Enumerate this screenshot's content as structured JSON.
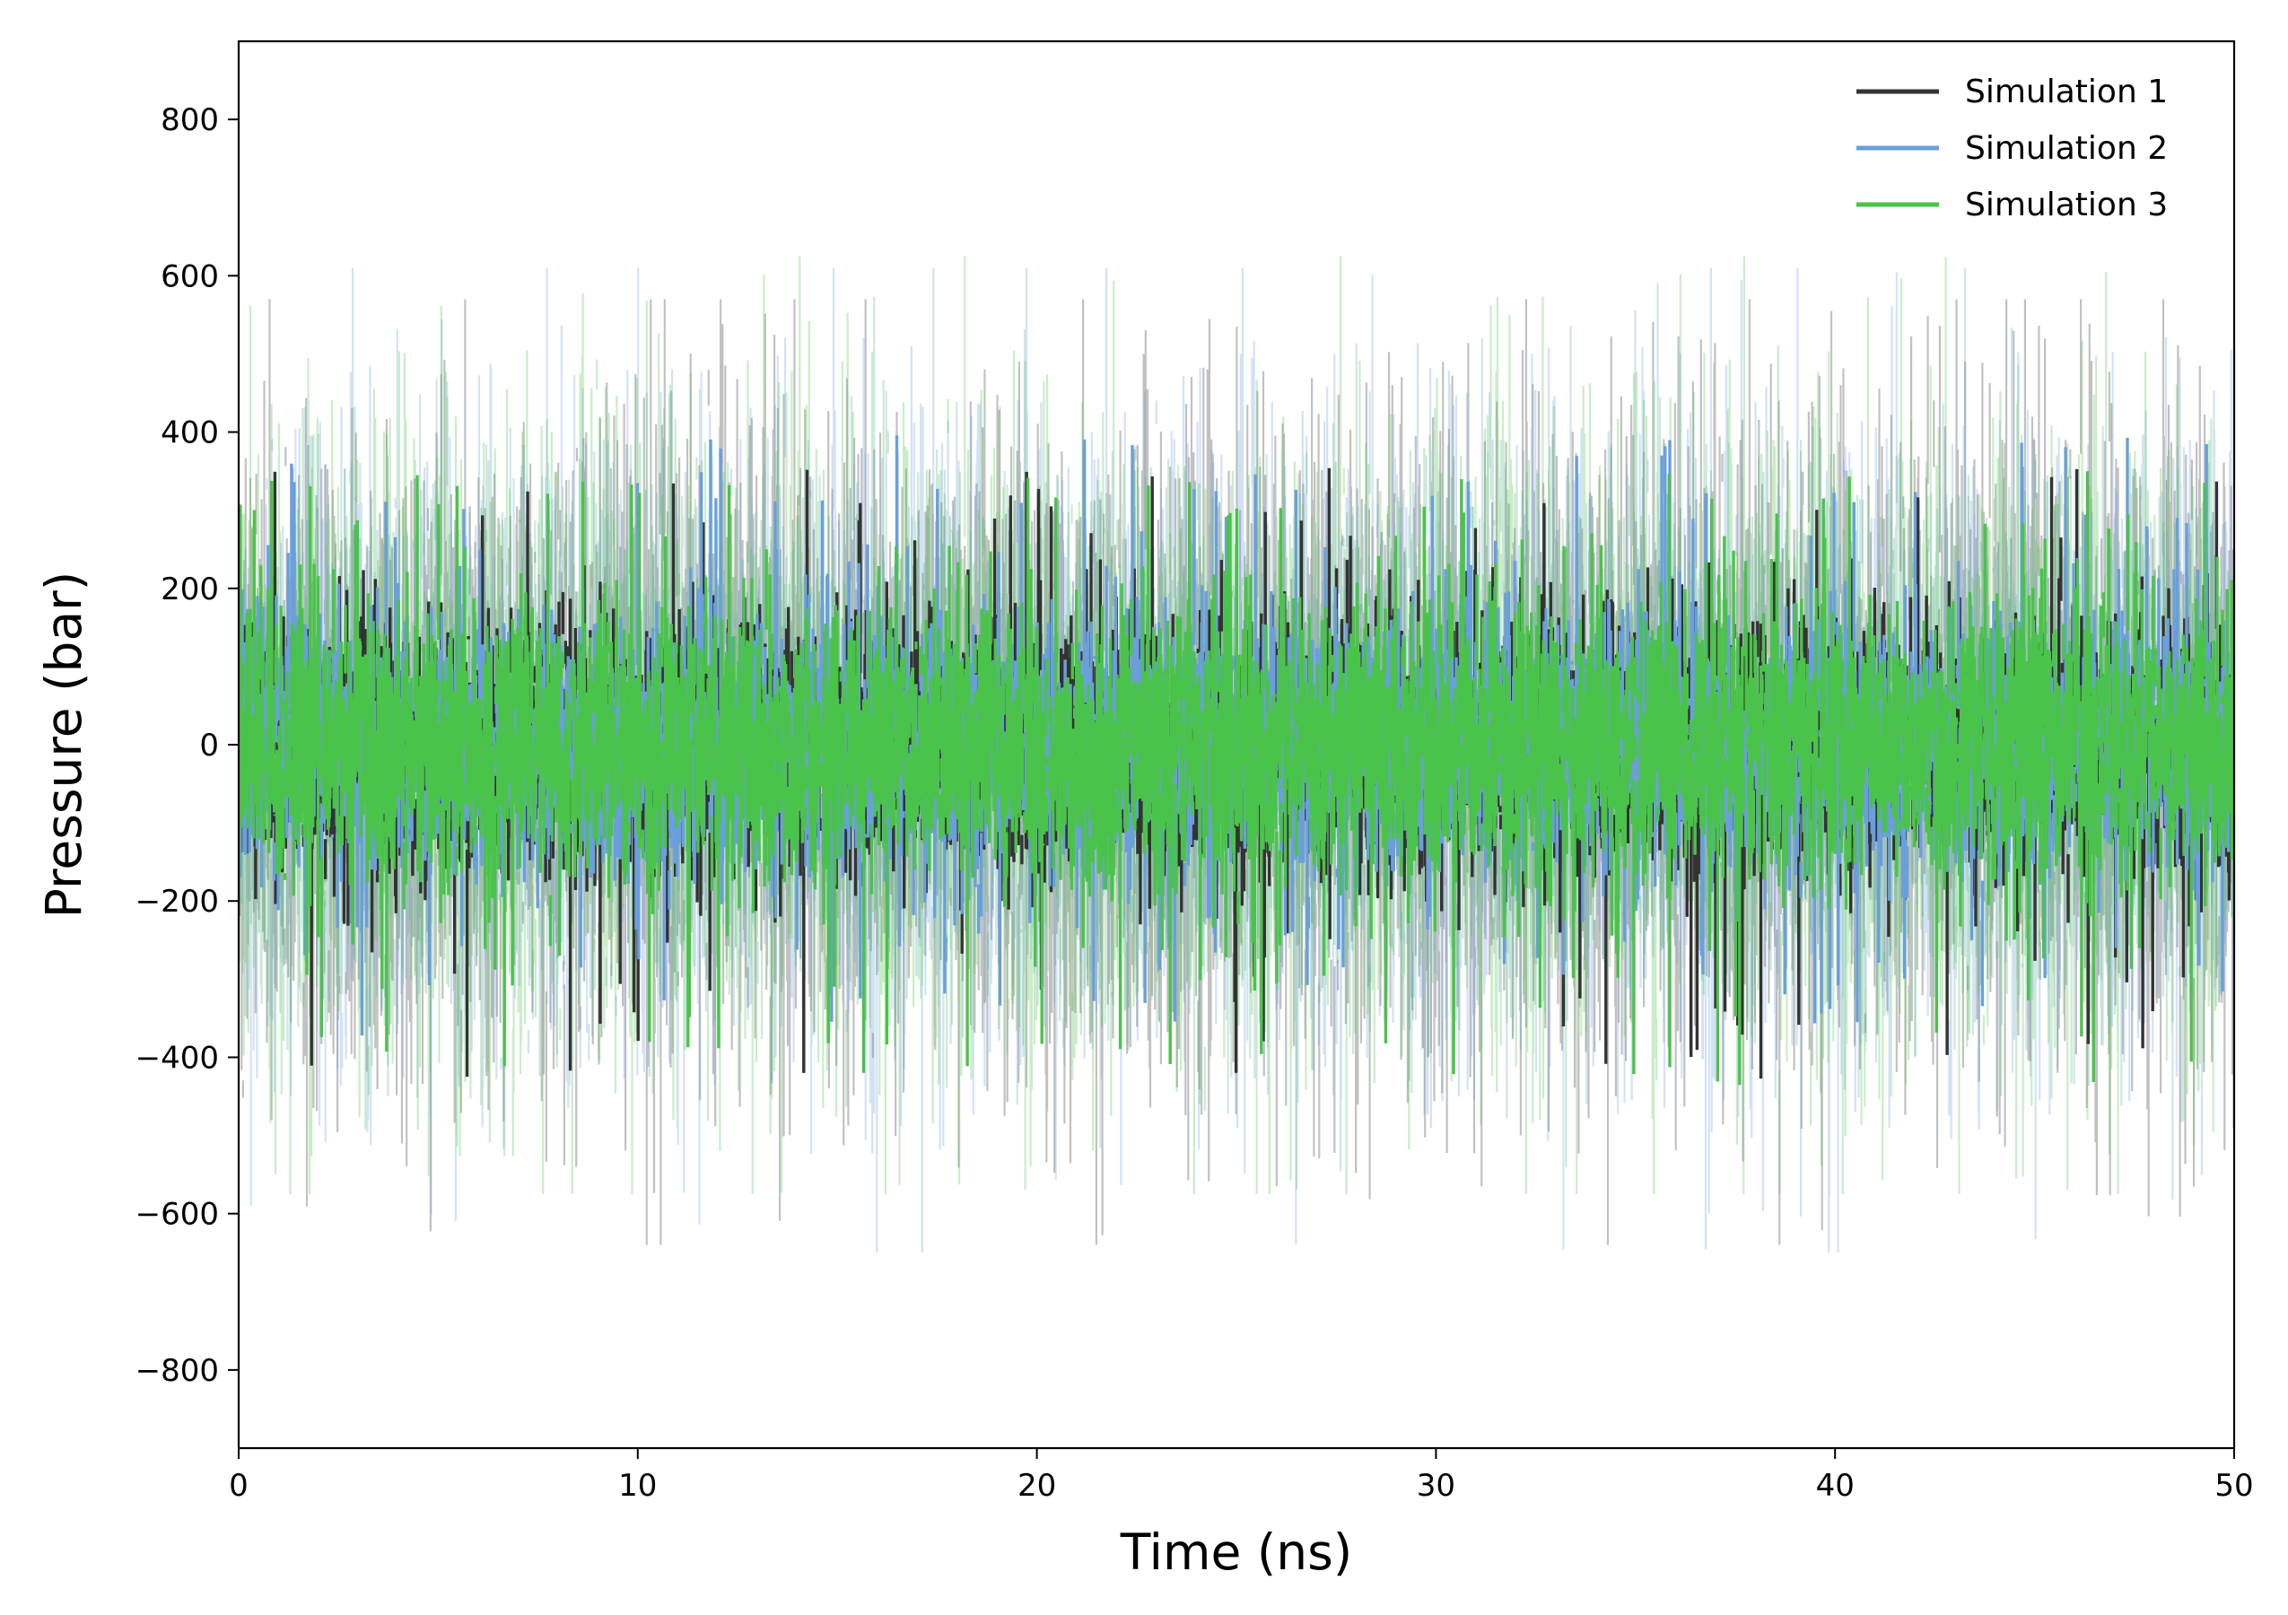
{
  "chart_data": {
    "type": "line",
    "title": "",
    "xlabel": "Time (ns)",
    "ylabel": "Pressure (bar)",
    "xlim": [
      0,
      50
    ],
    "ylim": [
      -900,
      900
    ],
    "xticks": [
      0,
      10,
      20,
      30,
      40,
      50
    ],
    "yticks": [
      -800,
      -600,
      -400,
      -200,
      0,
      200,
      400,
      600,
      800
    ],
    "ytick_labels": [
      "−800",
      "−600",
      "−400",
      "−200",
      "0",
      "200",
      "400",
      "600",
      "800"
    ],
    "grid": false,
    "legend_position": "top-right",
    "series": [
      {
        "name": "Simulation 1",
        "color": "#333333",
        "raw_mean": 0,
        "raw_std": 150,
        "raw_min": -640,
        "raw_max": 570,
        "smoothed_range": [
          -430,
          355
        ],
        "raw_style": "faint"
      },
      {
        "name": "Simulation 2",
        "color": "#6a9fdb",
        "raw_mean": 0,
        "raw_std": 150,
        "raw_min": -650,
        "raw_max": 610,
        "smoothed_range": [
          -380,
          400
        ],
        "raw_style": "faint"
      },
      {
        "name": "Simulation 3",
        "color": "#4ac34a",
        "raw_mean": 0,
        "raw_std": 150,
        "raw_min": -575,
        "raw_max": 625,
        "smoothed_range": [
          -440,
          350
        ],
        "raw_style": "faint"
      }
    ]
  }
}
